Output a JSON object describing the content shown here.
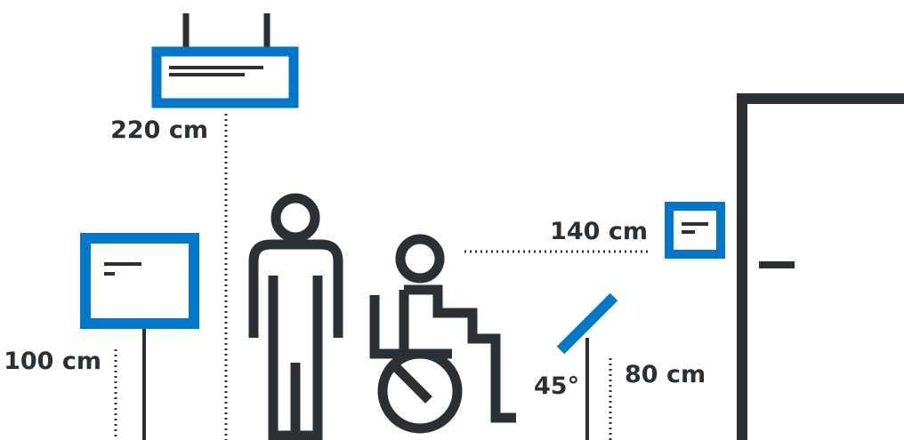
{
  "colors": {
    "accent": "#0077c8",
    "ink": "#2b3035",
    "background": "#ffffff"
  },
  "labels": {
    "hanging_sign_height": "220 cm",
    "standing_sign_height": "100 cm",
    "wall_sign_height": "140 cm",
    "lectern_height": "80 cm",
    "lectern_angle": "45°"
  },
  "icons": {
    "hanging_sign": "hanging-sign-icon",
    "standing_sign": "standing-sign-icon",
    "person": "standing-person-icon",
    "wheelchair_user": "wheelchair-user-icon",
    "lectern": "tilted-lectern-icon",
    "wall_sign": "wall-sign-icon",
    "door": "door-icon"
  }
}
